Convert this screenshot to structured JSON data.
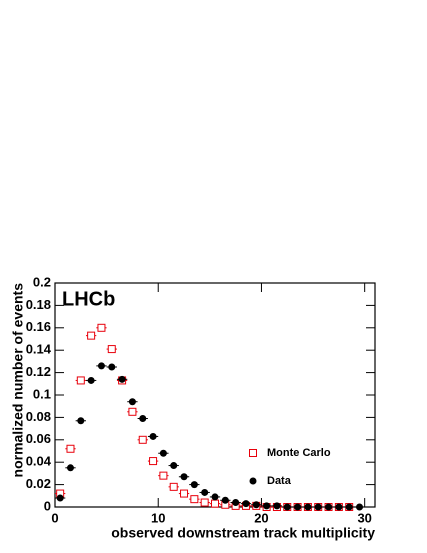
{
  "chart_data": {
    "type": "scatter",
    "annotation": "LHCb",
    "x_label": "observed downstream track multiplicity",
    "y_label": "normalized number of events",
    "x": [
      0.5,
      1.5,
      2.5,
      3.5,
      4.5,
      5.5,
      6.5,
      7.5,
      8.5,
      9.5,
      10.5,
      11.5,
      12.5,
      13.5,
      14.5,
      15.5,
      16.5,
      17.5,
      18.5,
      19.5,
      20.5,
      21.5,
      22.5,
      23.5,
      24.5,
      25.5,
      26.5,
      27.5,
      28.5,
      29.5
    ],
    "series": [
      {
        "name": "Monte Carlo",
        "color": "#e8000b",
        "marker": "open-square",
        "values": [
          0.012,
          0.052,
          0.113,
          0.153,
          0.16,
          0.141,
          0.113,
          0.085,
          0.06,
          0.041,
          0.028,
          0.018,
          0.012,
          0.007,
          0.004,
          0.003,
          0.002,
          0.001,
          0.001,
          0.001,
          0,
          0,
          0,
          0,
          0,
          0,
          0,
          0,
          0,
          null
        ]
      },
      {
        "name": "Data",
        "color": "#000000",
        "marker": "filled-circle",
        "values": [
          0.008,
          0.035,
          0.077,
          0.113,
          0.126,
          0.125,
          0.114,
          0.094,
          0.079,
          0.063,
          0.048,
          0.037,
          0.027,
          0.02,
          0.013,
          0.009,
          0.006,
          0.004,
          0.003,
          0.002,
          0.001,
          0.001,
          0,
          0,
          0,
          0,
          0,
          0,
          0,
          0
        ]
      }
    ],
    "xlim": [
      0,
      31
    ],
    "xticks": [
      0,
      10,
      20,
      30
    ],
    "ylim": [
      0,
      0.2
    ],
    "yticks": [
      0,
      0.02,
      0.04,
      0.06,
      0.08,
      0.1,
      0.12,
      0.14,
      0.16,
      0.18,
      0.2
    ],
    "legend": "lower-right"
  }
}
